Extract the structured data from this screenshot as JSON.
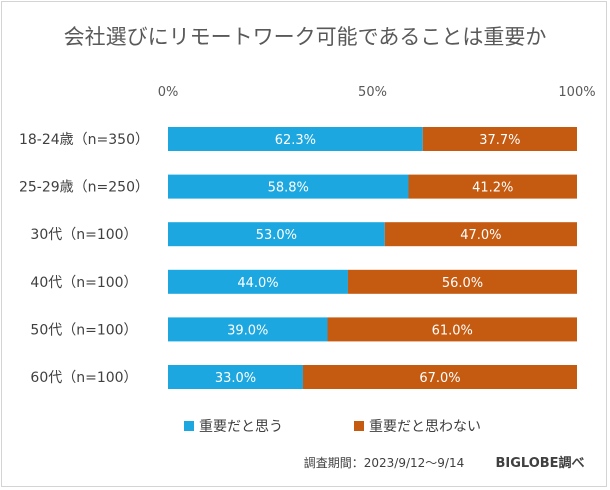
{
  "chart_data": {
    "type": "bar",
    "orientation": "horizontal",
    "stacked": true,
    "title": "会社選びにリモートワーク可能であることは重要か",
    "categories": [
      "18-24歳（n=350）",
      "25-29歳（n=250）",
      "30代（n=100）",
      "40代（n=100）",
      "50代（n=100）",
      "60代（n=100）"
    ],
    "series": [
      {
        "name": "重要だと思う",
        "color": "#1ca7e0",
        "values": [
          62.3,
          58.8,
          53.0,
          44.0,
          39.0,
          33.0
        ]
      },
      {
        "name": "重要だと思わない",
        "color": "#c55a11",
        "values": [
          37.7,
          41.2,
          47.0,
          56.0,
          61.0,
          67.0
        ]
      }
    ],
    "xlim": [
      0,
      100
    ],
    "xticks": [
      "0%",
      "50%",
      "100%"
    ],
    "legend_position": "bottom",
    "grid": false,
    "value_suffix": "%"
  },
  "footer": {
    "survey_period": "調査期間：2023/9/12～9/14",
    "source": "BIGLOBE調べ"
  }
}
